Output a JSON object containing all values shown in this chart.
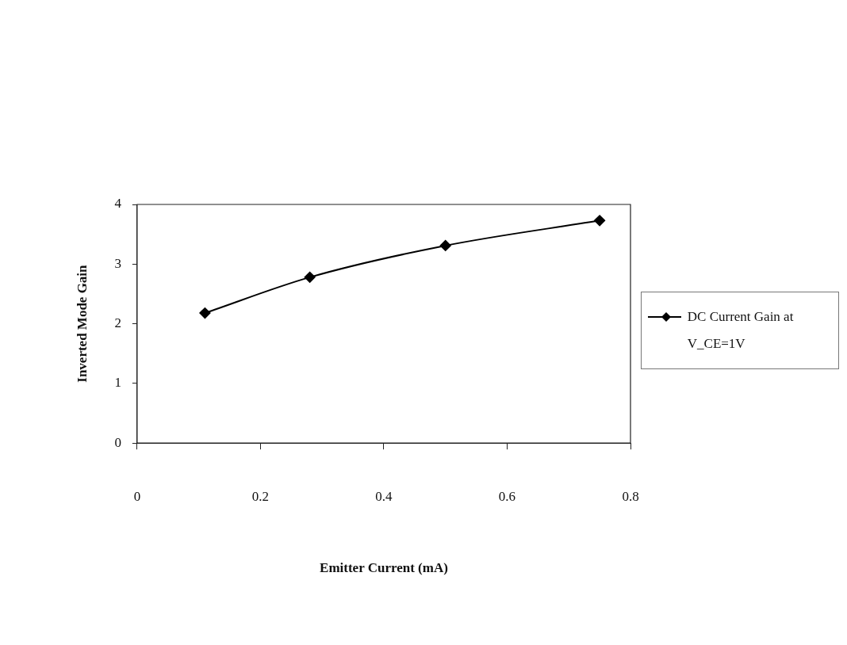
{
  "chart_data": {
    "type": "line",
    "xlabel": "Emitter Current (mA)",
    "ylabel": "Inverted Mode Gain",
    "x": [
      0.11,
      0.28,
      0.5,
      0.75
    ],
    "series": [
      {
        "name": "DC Current Gain at V_CE=1V",
        "color": "#000000",
        "values": [
          2.18,
          2.78,
          3.31,
          3.73
        ]
      }
    ],
    "xlim": [
      0,
      0.8
    ],
    "xticks": [
      0,
      0.2,
      0.4,
      0.6,
      0.8
    ],
    "ylim": [
      0,
      4
    ],
    "yticks": [
      0,
      1,
      2,
      3,
      4
    ],
    "grid": false,
    "legend": "right",
    "marker": "diamond",
    "line_style": "solid"
  }
}
